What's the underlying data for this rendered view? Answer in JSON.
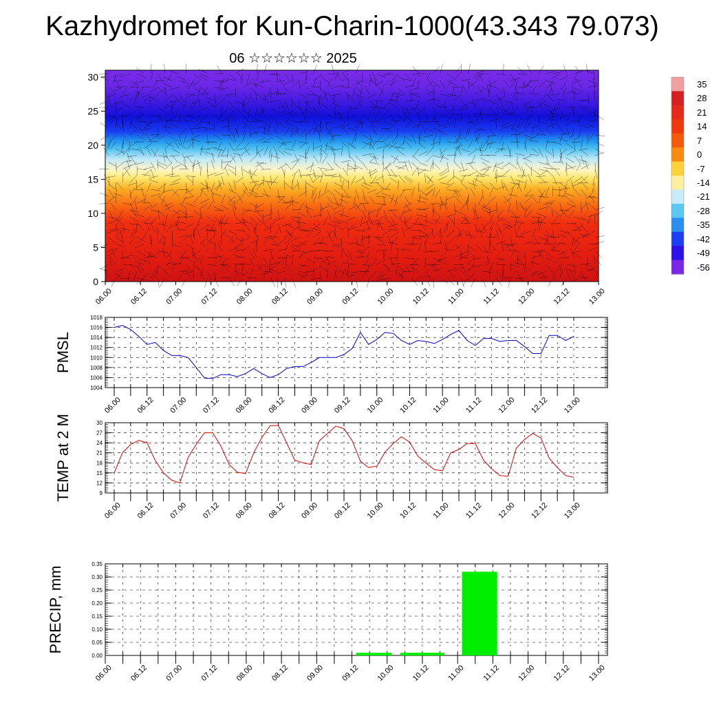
{
  "title": "Kazhydromet for Kun-Charin-1000(43.343 79.073)",
  "subtitle": "06 ☆☆☆☆☆☆ 2025",
  "time_labels": [
    "06.00",
    "06.12",
    "07.00",
    "07.12",
    "08.00",
    "08.12",
    "09.00",
    "09.12",
    "10.00",
    "10.12",
    "11.00",
    "11.12",
    "12.00",
    "12.12",
    "13.00"
  ],
  "colorbar": {
    "labels": [
      "35",
      "28",
      "21",
      "14",
      "7",
      "0",
      "-7",
      "-14",
      "-21",
      "-28",
      "-35",
      "-42",
      "-49",
      "-56"
    ],
    "colors": [
      "#f0a0a0",
      "#d42020",
      "#e62a1a",
      "#ef3a10",
      "#f55a0a",
      "#fb8b10",
      "#ffd23a",
      "#fff0a0",
      "#c8ecf8",
      "#5cc8f2",
      "#2c8ef0",
      "#1c40f0",
      "#3010e8",
      "#7a28e8"
    ]
  },
  "chart_data": [
    {
      "type": "heatmap",
      "name": "cross-section",
      "x_labels": [
        "06.00",
        "06.12",
        "07.00",
        "07.12",
        "08.00",
        "08.12",
        "09.00",
        "09.12",
        "10.00",
        "10.12",
        "11.00",
        "11.12",
        "12.00",
        "12.12",
        "13.00"
      ],
      "ylim": [
        0,
        31
      ],
      "yticks": [
        0,
        5,
        10,
        15,
        20,
        25,
        30
      ],
      "grid": false
    },
    {
      "type": "line",
      "ylabel": "PMSL",
      "ylim": [
        1004,
        1018
      ],
      "yticks": [
        1004,
        1006,
        1008,
        1010,
        1012,
        1014,
        1016,
        1018
      ],
      "color": "#0000cc",
      "values": [
        1016.0,
        1016.4,
        1015.6,
        1014.2,
        1012.6,
        1013.0,
        1011.4,
        1010.4,
        1010.4,
        1010.0,
        1008.0,
        1005.9,
        1005.8,
        1006.6,
        1006.6,
        1006.2,
        1006.8,
        1007.8,
        1006.8,
        1006.0,
        1006.6,
        1007.8,
        1008.2,
        1008.2,
        1009.0,
        1010.0,
        1010.0,
        1010.0,
        1010.6,
        1011.8,
        1015.0,
        1012.6,
        1013.6,
        1015.0,
        1014.8,
        1013.4,
        1012.6,
        1013.4,
        1013.2,
        1012.8,
        1013.6,
        1014.6,
        1015.4,
        1013.4,
        1012.4,
        1013.8,
        1013.8,
        1013.2,
        1013.4,
        1013.4,
        1012.2,
        1010.8,
        1010.8,
        1014.4,
        1014.4,
        1013.4,
        1014.2
      ],
      "grid": true
    },
    {
      "type": "line",
      "ylabel": "TEMP at 2 M",
      "ylim": [
        9,
        30
      ],
      "yticks": [
        9,
        12,
        15,
        18,
        21,
        24,
        27,
        30
      ],
      "color": "#dd0000",
      "values": [
        15.0,
        21.0,
        23.5,
        24.7,
        24.0,
        18.7,
        15.0,
        12.8,
        12.0,
        19.6,
        23.6,
        27.0,
        27.0,
        23.0,
        17.5,
        15.2,
        14.8,
        21.0,
        25.6,
        29.1,
        29.2,
        24.0,
        18.8,
        18.0,
        17.5,
        24.6,
        26.8,
        29.0,
        28.2,
        24.6,
        18.5,
        16.6,
        17.0,
        21.2,
        23.8,
        25.8,
        24.2,
        20.0,
        17.9,
        16.0,
        15.6,
        21.0,
        22.0,
        23.8,
        23.8,
        18.8,
        16.2,
        14.2,
        14.0,
        22.4,
        25.0,
        26.8,
        25.4,
        19.4,
        16.6,
        14.2,
        13.7
      ],
      "grid": true
    },
    {
      "type": "bar",
      "ylabel": "PRECIP, mm",
      "ylim": [
        0,
        0.35
      ],
      "yticks": [
        "0.00",
        "0.05",
        "0.10",
        "0.15",
        "0.20",
        "0.25",
        "0.30",
        "0.35"
      ],
      "color": "#00ee00",
      "bars": [
        {
          "time": "09.18",
          "value": 0.01
        },
        {
          "time": "10.09",
          "value": 0.01
        },
        {
          "time": "10.12",
          "value": 0.01
        },
        {
          "time": "11.06",
          "value": 0.32
        }
      ],
      "grid": true
    }
  ]
}
